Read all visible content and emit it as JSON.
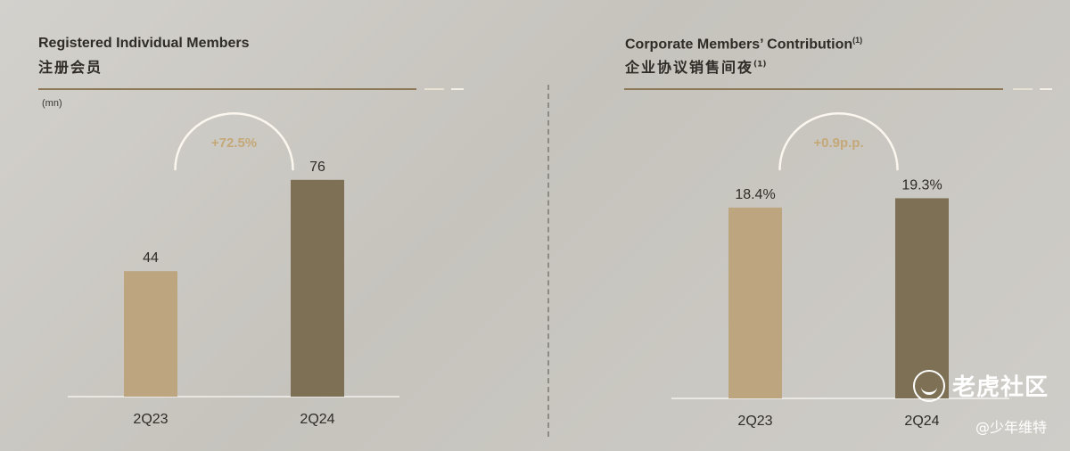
{
  "chart_data": [
    {
      "type": "bar",
      "title": "Registered Individual Members",
      "title_zh": "注册会员",
      "unit": "(mn)",
      "categories": [
        "2Q23",
        "2Q24"
      ],
      "values": [
        44,
        76
      ],
      "value_labels": [
        "44",
        "76"
      ],
      "ylim": [
        0,
        80
      ],
      "growth_label": "+72.5%",
      "colors": [
        "#bca57f",
        "#7d7054"
      ]
    },
    {
      "type": "bar",
      "title": "Corporate Members’ Contribution",
      "title_sup": "(1)",
      "title_zh": "企业协议销售间夜",
      "title_zh_sup": "(1)",
      "categories": [
        "2Q23",
        "2Q24"
      ],
      "values": [
        18.4,
        19.3
      ],
      "value_labels": [
        "18.4%",
        "19.3%"
      ],
      "ylim": [
        0,
        22
      ],
      "growth_label": "+0.9p.p.",
      "colors": [
        "#bca57f",
        "#7d7054"
      ]
    }
  ],
  "watermark": {
    "brand": "老虎社区",
    "user": "@少年维特"
  }
}
